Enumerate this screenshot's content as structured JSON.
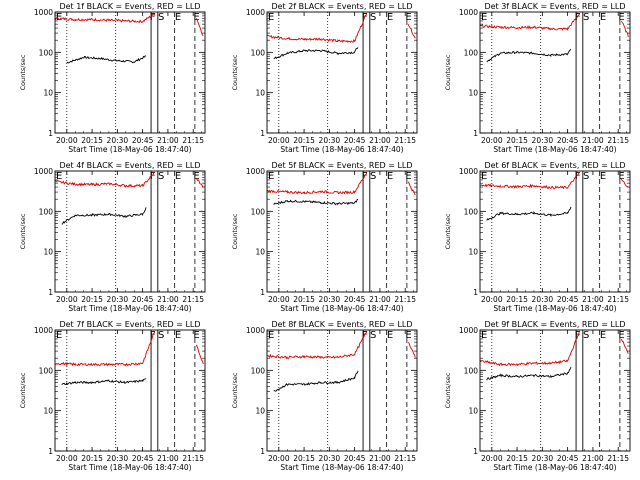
{
  "figure": {
    "colors": {
      "events": "#000000",
      "lld": "#dd0000",
      "axes": "#000000"
    },
    "marker_labels": [
      "F",
      "S",
      "E",
      "E"
    ]
  },
  "chart_data": [
    {
      "type": "line",
      "title": "Det 1f BLACK = Events, RED = LLD",
      "ylabel": "Counts/sec",
      "xlabel": "Start Time (18-May-06 18:47:40)",
      "x_ticks": [
        "20:00",
        "20:15",
        "20:30",
        "20:45",
        "21:00",
        "21:15"
      ],
      "y_ticks": [
        "1",
        "10",
        "100",
        "1000"
      ],
      "y_scale": "log",
      "ylim": [
        1,
        1000
      ],
      "grid": false,
      "series": [
        {
          "name": "Events",
          "color": "#000000",
          "x": [
            "20:00",
            "20:10",
            "20:20",
            "20:30",
            "20:40",
            "20:47"
          ],
          "values": [
            55,
            75,
            70,
            62,
            58,
            80
          ]
        },
        {
          "name": "LLD",
          "color": "#dd0000",
          "x": [
            "19:53",
            "20:05",
            "20:15",
            "20:25",
            "20:35",
            "20:45",
            "20:52",
            "21:17",
            "21:21"
          ],
          "values": [
            700,
            650,
            650,
            620,
            600,
            580,
            900,
            700,
            250
          ]
        }
      ]
    },
    {
      "type": "line",
      "title": "Det 2f BLACK = Events, RED = LLD",
      "ylabel": "Counts/sec",
      "xlabel": "Start Time (18-May-06 18:47:40)",
      "x_ticks": [
        "20:00",
        "20:15",
        "20:30",
        "20:45",
        "21:00",
        "21:15"
      ],
      "y_ticks": [
        "1",
        "10",
        "100",
        "1000"
      ],
      "y_scale": "log",
      "ylim": [
        1,
        1000
      ],
      "grid": false,
      "series": [
        {
          "name": "Events",
          "color": "#000000",
          "x": [
            "19:57",
            "20:05",
            "20:15",
            "20:25",
            "20:35",
            "20:45",
            "20:47"
          ],
          "values": [
            70,
            95,
            110,
            110,
            95,
            100,
            140
          ]
        },
        {
          "name": "LLD",
          "color": "#dd0000",
          "x": [
            "19:53",
            "20:05",
            "20:15",
            "20:25",
            "20:35",
            "20:45",
            "20:52",
            "21:17",
            "21:21"
          ],
          "values": [
            250,
            220,
            210,
            215,
            190,
            190,
            900,
            500,
            220
          ]
        }
      ]
    },
    {
      "type": "line",
      "title": "Det 3f BLACK = Events, RED = LLD",
      "ylabel": "Counts/sec",
      "xlabel": "Start Time (18-May-06 18:47:40)",
      "x_ticks": [
        "20:00",
        "20:15",
        "20:30",
        "20:45",
        "21:00",
        "21:15"
      ],
      "y_ticks": [
        "1",
        "10",
        "100",
        "1000"
      ],
      "y_scale": "log",
      "ylim": [
        1,
        1000
      ],
      "grid": false,
      "series": [
        {
          "name": "Events",
          "color": "#000000",
          "x": [
            "19:57",
            "20:05",
            "20:15",
            "20:25",
            "20:35",
            "20:45",
            "20:47"
          ],
          "values": [
            60,
            95,
            100,
            95,
            85,
            90,
            120
          ]
        },
        {
          "name": "LLD",
          "color": "#dd0000",
          "x": [
            "19:53",
            "20:05",
            "20:15",
            "20:25",
            "20:35",
            "20:45",
            "20:52",
            "21:17",
            "21:21"
          ],
          "values": [
            450,
            420,
            410,
            420,
            380,
            380,
            900,
            600,
            250
          ]
        }
      ]
    },
    {
      "type": "line",
      "title": "Det 4f BLACK = Events, RED = LLD",
      "ylabel": "Counts/sec",
      "xlabel": "Start Time (18-May-06 18:47:40)",
      "x_ticks": [
        "20:00",
        "20:15",
        "20:30",
        "20:45",
        "21:00",
        "21:15"
      ],
      "y_ticks": [
        "1",
        "10",
        "100",
        "1000"
      ],
      "y_scale": "log",
      "ylim": [
        1,
        1000
      ],
      "grid": false,
      "series": [
        {
          "name": "Events",
          "color": "#000000",
          "x": [
            "19:57",
            "20:05",
            "20:15",
            "20:25",
            "20:35",
            "20:45",
            "20:47"
          ],
          "values": [
            50,
            80,
            80,
            85,
            75,
            85,
            120
          ]
        },
        {
          "name": "LLD",
          "color": "#dd0000",
          "x": [
            "19:53",
            "20:05",
            "20:15",
            "20:25",
            "20:35",
            "20:45",
            "20:52",
            "21:17",
            "21:21"
          ],
          "values": [
            550,
            470,
            460,
            480,
            430,
            430,
            900,
            650,
            400
          ]
        }
      ]
    },
    {
      "type": "line",
      "title": "Det 5f BLACK = Events, RED = LLD",
      "ylabel": "Counts/sec",
      "xlabel": "Start Time (18-May-06 18:47:40)",
      "x_ticks": [
        "20:00",
        "20:15",
        "20:30",
        "20:45",
        "21:00",
        "21:15"
      ],
      "y_ticks": [
        "1",
        "10",
        "100",
        "1000"
      ],
      "y_scale": "log",
      "ylim": [
        1,
        1000
      ],
      "grid": false,
      "series": [
        {
          "name": "Events",
          "color": "#000000",
          "x": [
            "19:57",
            "20:05",
            "20:15",
            "20:25",
            "20:35",
            "20:45",
            "20:47"
          ],
          "values": [
            150,
            180,
            175,
            165,
            155,
            160,
            200
          ]
        },
        {
          "name": "LLD",
          "color": "#dd0000",
          "x": [
            "19:53",
            "20:05",
            "20:15",
            "20:25",
            "20:35",
            "20:45",
            "20:52",
            "21:17",
            "21:21"
          ],
          "values": [
            320,
            300,
            290,
            310,
            290,
            300,
            900,
            500,
            250
          ]
        }
      ]
    },
    {
      "type": "line",
      "title": "Det 6f BLACK = Events, RED = LLD",
      "ylabel": "Counts/sec",
      "xlabel": "Start Time (18-May-06 18:47:40)",
      "x_ticks": [
        "20:00",
        "20:15",
        "20:30",
        "20:45",
        "21:00",
        "21:15"
      ],
      "y_ticks": [
        "1",
        "10",
        "100",
        "1000"
      ],
      "y_scale": "log",
      "ylim": [
        1,
        1000
      ],
      "grid": false,
      "series": [
        {
          "name": "Events",
          "color": "#000000",
          "x": [
            "19:57",
            "20:05",
            "20:15",
            "20:25",
            "20:35",
            "20:45",
            "20:47"
          ],
          "values": [
            60,
            90,
            85,
            90,
            80,
            90,
            130
          ]
        },
        {
          "name": "LLD",
          "color": "#dd0000",
          "x": [
            "19:53",
            "20:05",
            "20:15",
            "20:25",
            "20:35",
            "20:45",
            "20:52",
            "21:17",
            "21:21"
          ],
          "values": [
            450,
            420,
            410,
            430,
            390,
            390,
            900,
            600,
            400
          ]
        }
      ]
    },
    {
      "type": "line",
      "title": "Det 7f BLACK = Events, RED = LLD",
      "ylabel": "Counts/sec",
      "xlabel": "Start Time (18-May-06 18:47:40)",
      "x_ticks": [
        "20:00",
        "20:15",
        "20:30",
        "20:45",
        "21:00",
        "21:15"
      ],
      "y_ticks": [
        "1",
        "10",
        "100",
        "1000"
      ],
      "y_scale": "log",
      "ylim": [
        1,
        1000
      ],
      "grid": false,
      "series": [
        {
          "name": "Events",
          "color": "#000000",
          "x": [
            "19:57",
            "20:05",
            "20:15",
            "20:25",
            "20:35",
            "20:45",
            "20:47"
          ],
          "values": [
            45,
            50,
            50,
            55,
            50,
            55,
            60
          ]
        },
        {
          "name": "LLD",
          "color": "#dd0000",
          "x": [
            "19:53",
            "20:05",
            "20:15",
            "20:25",
            "20:35",
            "20:45",
            "20:52",
            "21:17",
            "21:21"
          ],
          "values": [
            150,
            140,
            140,
            140,
            140,
            150,
            900,
            400,
            150
          ]
        }
      ]
    },
    {
      "type": "line",
      "title": "Det 8f BLACK = Events, RED = LLD",
      "ylabel": "Counts/sec",
      "xlabel": "Start Time (18-May-06 18:47:40)",
      "x_ticks": [
        "20:00",
        "20:15",
        "20:30",
        "20:45",
        "21:00",
        "21:15"
      ],
      "y_ticks": [
        "1",
        "10",
        "100",
        "1000"
      ],
      "y_scale": "log",
      "ylim": [
        1,
        1000
      ],
      "grid": false,
      "series": [
        {
          "name": "Events",
          "color": "#000000",
          "x": [
            "19:57",
            "20:05",
            "20:15",
            "20:25",
            "20:35",
            "20:45",
            "20:47"
          ],
          "values": [
            30,
            45,
            45,
            50,
            50,
            65,
            100
          ]
        },
        {
          "name": "LLD",
          "color": "#dd0000",
          "x": [
            "19:53",
            "20:05",
            "20:15",
            "20:25",
            "20:35",
            "20:45",
            "20:52",
            "21:17",
            "21:21"
          ],
          "values": [
            230,
            210,
            220,
            210,
            210,
            250,
            900,
            500,
            220
          ]
        }
      ]
    },
    {
      "type": "line",
      "title": "Det 9f BLACK = Events, RED = LLD",
      "ylabel": "Counts/sec",
      "xlabel": "Start Time (18-May-06 18:47:40)",
      "x_ticks": [
        "20:00",
        "20:15",
        "20:30",
        "20:45",
        "21:00",
        "21:15"
      ],
      "y_ticks": [
        "1",
        "10",
        "100",
        "1000"
      ],
      "y_scale": "log",
      "ylim": [
        1,
        1000
      ],
      "grid": false,
      "series": [
        {
          "name": "Events",
          "color": "#000000",
          "x": [
            "19:57",
            "20:05",
            "20:15",
            "20:25",
            "20:35",
            "20:45",
            "20:47"
          ],
          "values": [
            60,
            75,
            70,
            75,
            70,
            85,
            120
          ]
        },
        {
          "name": "LLD",
          "color": "#dd0000",
          "x": [
            "19:53",
            "20:05",
            "20:15",
            "20:25",
            "20:35",
            "20:45",
            "20:52",
            "21:17",
            "21:21"
          ],
          "values": [
            170,
            140,
            140,
            150,
            150,
            170,
            900,
            600,
            250
          ]
        }
      ]
    }
  ]
}
